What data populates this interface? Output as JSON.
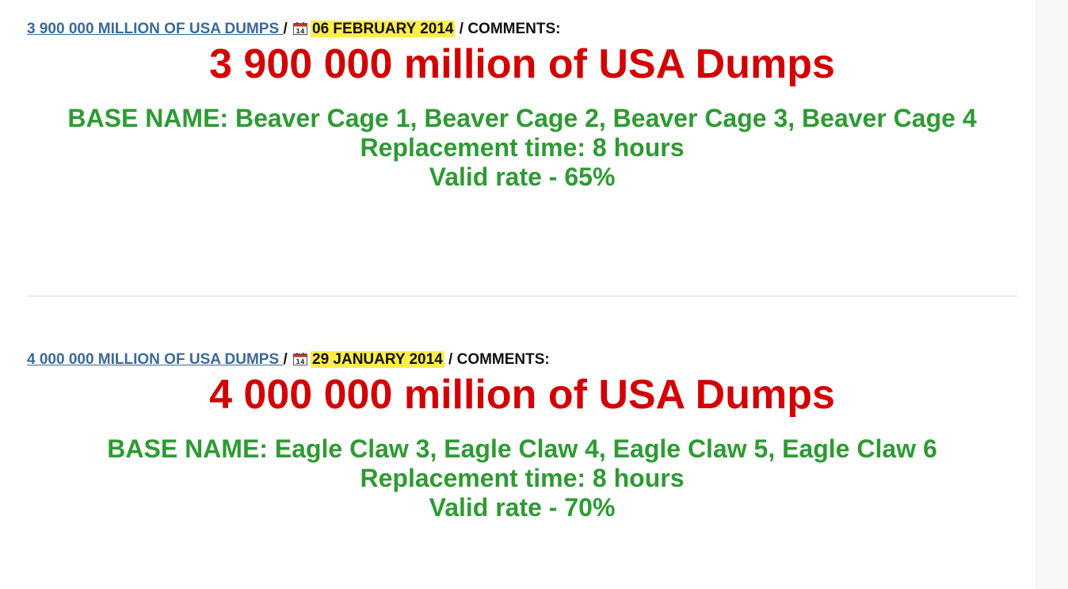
{
  "posts": [
    {
      "link_text": "3 900 000 MILLION OF USA DUMPS ",
      "separator1": " / ",
      "date": "06 FEBRUARY 2014",
      "separator2": " / ",
      "comments_label": "COMMENTS:",
      "title": "3 900 000 million of USA Dumps",
      "base_name": "BASE NAME: Beaver Cage 1, Beaver Cage 2, Beaver Cage 3, Beaver Cage 4",
      "replacement_time": "Replacement time: 8 hours",
      "valid_rate": "Valid rate - 65%"
    },
    {
      "link_text": "4 000 000 MILLION OF USA DUMPS ",
      "separator1": " / ",
      "date": "29 JANUARY 2014",
      "separator2": " / ",
      "comments_label": "COMMENTS:",
      "title": "4 000 000 million of USA Dumps",
      "base_name": "BASE NAME: Eagle Claw 3, Eagle Claw 4, Eagle Claw 5, Eagle Claw 6",
      "replacement_time": "Replacement time: 8 hours",
      "valid_rate": "Valid rate - 70%"
    }
  ],
  "calendar_icon_number": "14",
  "colors": {
    "link": "#3b6998",
    "date_highlight": "#ffed4a",
    "title": "#d20000",
    "body": "#2e9a33"
  }
}
